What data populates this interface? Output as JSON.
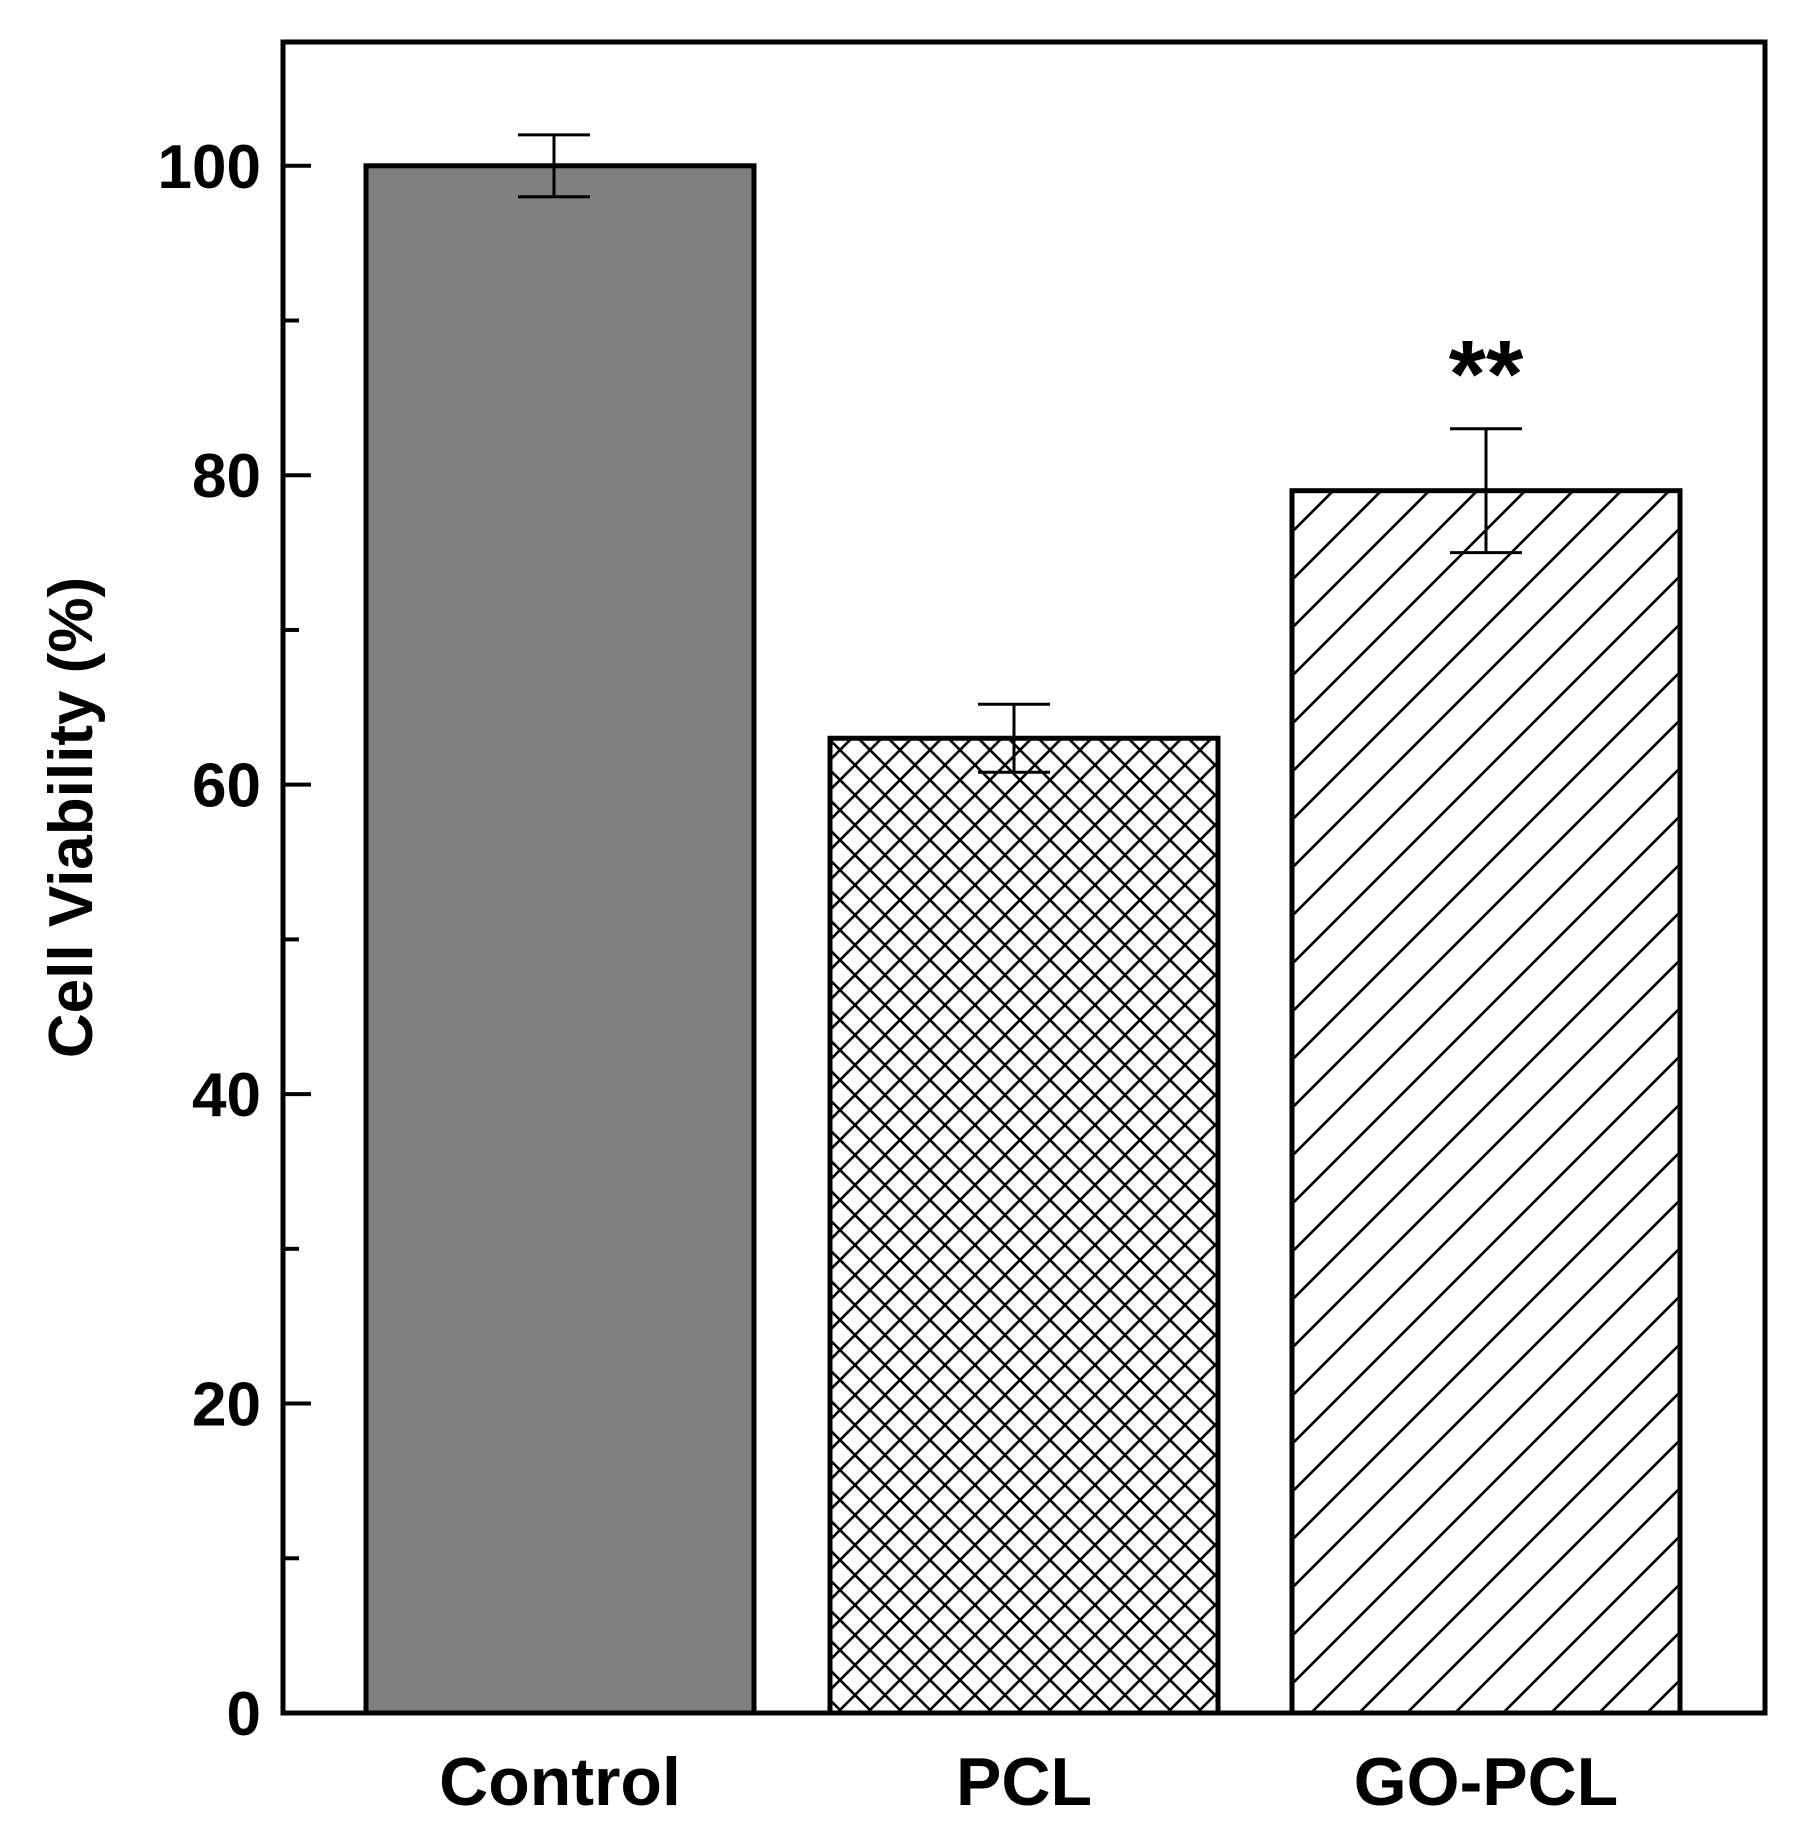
{
  "chart_data": {
    "type": "bar",
    "title": "",
    "xlabel": "",
    "ylabel": "Cell Viability (%)",
    "ylim": [
      0,
      108
    ],
    "yticks_major": [
      0,
      20,
      40,
      60,
      80,
      100
    ],
    "yticks_minor": [
      10,
      30,
      50,
      70,
      90
    ],
    "grid": false,
    "categories": [
      "Control",
      "PCL",
      "GO-PCL"
    ],
    "values": [
      100,
      63,
      79
    ],
    "errors": [
      2,
      2.2,
      4
    ],
    "patterns": [
      "solid-gray",
      "crosshatch",
      "diagonal"
    ],
    "annotations": [
      {
        "category": "GO-PCL",
        "text": "**"
      }
    ]
  },
  "colors": {
    "solid_fill": "#808080",
    "hatch_fill": "#ffffff",
    "stroke": "#000000"
  }
}
